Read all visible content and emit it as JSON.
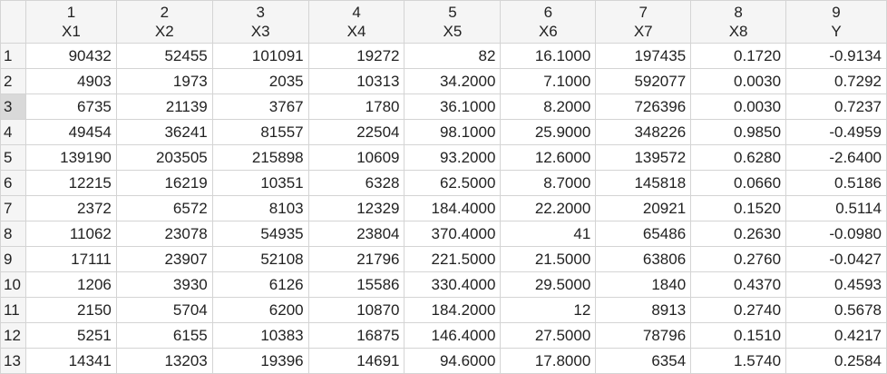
{
  "columns": [
    {
      "num": "1",
      "name": "X1"
    },
    {
      "num": "2",
      "name": "X2"
    },
    {
      "num": "3",
      "name": "X3"
    },
    {
      "num": "4",
      "name": "X4"
    },
    {
      "num": "5",
      "name": "X5"
    },
    {
      "num": "6",
      "name": "X6"
    },
    {
      "num": "7",
      "name": "X7"
    },
    {
      "num": "8",
      "name": "X8"
    },
    {
      "num": "9",
      "name": "Y"
    }
  ],
  "selected_row": 3,
  "rows": [
    {
      "label": "1",
      "cells": [
        "90432",
        "52455",
        "101091",
        "19272",
        "82",
        "16.1000",
        "197435",
        "0.1720",
        "-0.9134"
      ]
    },
    {
      "label": "2",
      "cells": [
        "4903",
        "1973",
        "2035",
        "10313",
        "34.2000",
        "7.1000",
        "592077",
        "0.0030",
        "0.7292"
      ]
    },
    {
      "label": "3",
      "cells": [
        "6735",
        "21139",
        "3767",
        "1780",
        "36.1000",
        "8.2000",
        "726396",
        "0.0030",
        "0.7237"
      ]
    },
    {
      "label": "4",
      "cells": [
        "49454",
        "36241",
        "81557",
        "22504",
        "98.1000",
        "25.9000",
        "348226",
        "0.9850",
        "-0.4959"
      ]
    },
    {
      "label": "5",
      "cells": [
        "139190",
        "203505",
        "215898",
        "10609",
        "93.2000",
        "12.6000",
        "139572",
        "0.6280",
        "-2.6400"
      ]
    },
    {
      "label": "6",
      "cells": [
        "12215",
        "16219",
        "10351",
        "6328",
        "62.5000",
        "8.7000",
        "145818",
        "0.0660",
        "0.5186"
      ]
    },
    {
      "label": "7",
      "cells": [
        "2372",
        "6572",
        "8103",
        "12329",
        "184.4000",
        "22.2000",
        "20921",
        "0.1520",
        "0.5114"
      ]
    },
    {
      "label": "8",
      "cells": [
        "11062",
        "23078",
        "54935",
        "23804",
        "370.4000",
        "41",
        "65486",
        "0.2630",
        "-0.0980"
      ]
    },
    {
      "label": "9",
      "cells": [
        "17111",
        "23907",
        "52108",
        "21796",
        "221.5000",
        "21.5000",
        "63806",
        "0.2760",
        "-0.0427"
      ]
    },
    {
      "label": "10",
      "cells": [
        "1206",
        "3930",
        "6126",
        "15586",
        "330.4000",
        "29.5000",
        "1840",
        "0.4370",
        "0.4593"
      ]
    },
    {
      "label": "11",
      "cells": [
        "2150",
        "5704",
        "6200",
        "10870",
        "184.2000",
        "12",
        "8913",
        "0.2740",
        "0.5678"
      ]
    },
    {
      "label": "12",
      "cells": [
        "5251",
        "6155",
        "10383",
        "16875",
        "146.4000",
        "27.5000",
        "78796",
        "0.1510",
        "0.4217"
      ]
    },
    {
      "label": "13",
      "cells": [
        "14341",
        "13203",
        "19396",
        "14691",
        "94.6000",
        "17.8000",
        "6354",
        "1.5740",
        "0.2584"
      ]
    }
  ]
}
